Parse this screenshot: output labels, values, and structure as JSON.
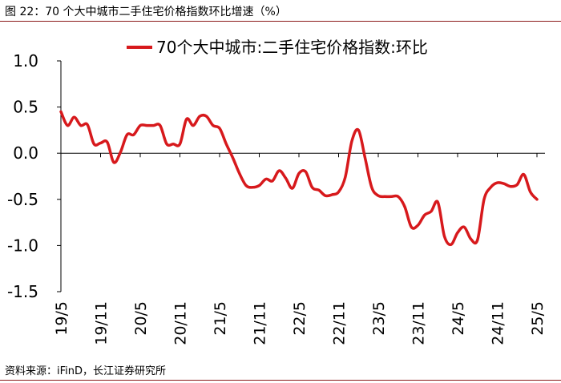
{
  "figure": {
    "title": "图 22：70 个大中城市二手住宅价格指数环比增速（%）",
    "source": "资料来源：iFinD，长江证券研究所"
  },
  "colors": {
    "series": "#d7191c",
    "axis": "#000000",
    "rule": "#8b1a1a"
  },
  "chart_data": {
    "type": "line",
    "title": "",
    "xlabel": "",
    "ylabel": "",
    "ylim": [
      -1.5,
      1.0
    ],
    "yticks": [
      1.0,
      0.5,
      0.0,
      -0.5,
      -1.0,
      -1.5
    ],
    "ytick_labels": [
      "1.0",
      "0.5",
      "0.0",
      "-0.5",
      "-1.0",
      "-1.5"
    ],
    "xtick_labels": [
      "19/5",
      "19/11",
      "20/5",
      "20/11",
      "21/5",
      "21/11",
      "22/5",
      "22/11",
      "23/5",
      "23/11",
      "24/5",
      "24/11",
      "25/5"
    ],
    "grid": false,
    "legend_position": "top",
    "x": [
      "19/5",
      "19/6",
      "19/7",
      "19/8",
      "19/9",
      "19/10",
      "19/11",
      "19/12",
      "20/1",
      "20/2",
      "20/3",
      "20/4",
      "20/5",
      "20/6",
      "20/7",
      "20/8",
      "20/9",
      "20/10",
      "20/11",
      "20/12",
      "21/1",
      "21/2",
      "21/3",
      "21/4",
      "21/5",
      "21/6",
      "21/7",
      "21/8",
      "21/9",
      "21/10",
      "21/11",
      "21/12",
      "22/1",
      "22/2",
      "22/3",
      "22/4",
      "22/5",
      "22/6",
      "22/7",
      "22/8",
      "22/9",
      "22/10",
      "22/11",
      "22/12",
      "23/1",
      "23/2",
      "23/3",
      "23/4",
      "23/5",
      "23/6",
      "23/7",
      "23/8",
      "23/9",
      "23/10",
      "23/11",
      "23/12",
      "24/1",
      "24/2",
      "24/3",
      "24/4",
      "24/5",
      "24/6",
      "24/7",
      "24/8",
      "24/9",
      "24/10",
      "24/11",
      "24/12",
      "25/1",
      "25/2",
      "25/3",
      "25/4",
      "25/5"
    ],
    "series": [
      {
        "name": "70个大中城市:二手住宅价格指数:环比",
        "values": [
          0.45,
          0.3,
          0.39,
          0.3,
          0.31,
          0.1,
          0.11,
          0.12,
          -0.1,
          0.01,
          0.2,
          0.2,
          0.3,
          0.3,
          0.3,
          0.3,
          0.1,
          0.1,
          0.1,
          0.37,
          0.3,
          0.4,
          0.4,
          0.3,
          0.27,
          0.1,
          -0.05,
          -0.22,
          -0.35,
          -0.37,
          -0.35,
          -0.28,
          -0.3,
          -0.19,
          -0.27,
          -0.38,
          -0.22,
          -0.2,
          -0.37,
          -0.4,
          -0.46,
          -0.45,
          -0.42,
          -0.26,
          0.13,
          0.25,
          -0.05,
          -0.37,
          -0.46,
          -0.47,
          -0.47,
          -0.47,
          -0.58,
          -0.8,
          -0.78,
          -0.67,
          -0.63,
          -0.53,
          -0.9,
          -0.99,
          -0.86,
          -0.8,
          -0.93,
          -0.94,
          -0.5,
          -0.37,
          -0.32,
          -0.33,
          -0.36,
          -0.34,
          -0.23,
          -0.42,
          -0.5
        ]
      }
    ]
  }
}
